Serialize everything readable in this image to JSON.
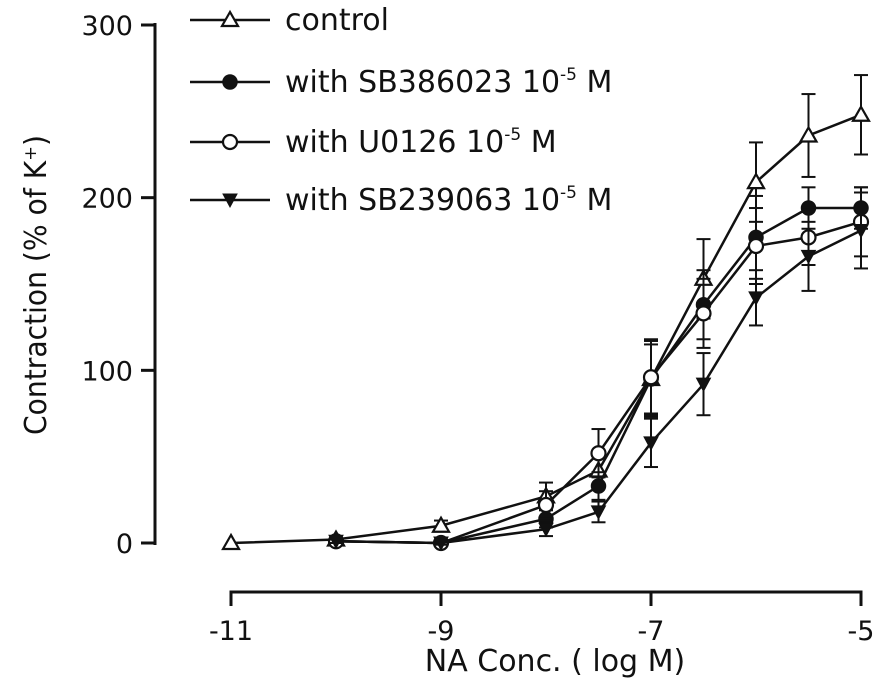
{
  "chart_data": {
    "type": "line",
    "xlabel": "NA Conc. ( log M)",
    "ylabel": "Contraction (% of K⁺)",
    "xlim": [
      -11,
      -5
    ],
    "ylim": [
      0,
      300
    ],
    "x_ticks": [
      "-11",
      "-9",
      "-7",
      "-5"
    ],
    "y_ticks": [
      "0",
      "100",
      "200",
      "300"
    ],
    "grid": false,
    "legend_position": "top-left",
    "series": [
      {
        "name": "control",
        "label_main": "control",
        "label_sup": "",
        "label_tail": "",
        "marker": "open-triangle",
        "x": [
          -11,
          -10,
          -9,
          -8,
          -7.5,
          -7,
          -6.5,
          -6,
          -5.5,
          -5
        ],
        "y": [
          0,
          2,
          10,
          27,
          42,
          95,
          153,
          209,
          236,
          248
        ],
        "err": [
          0,
          1,
          3,
          8,
          10,
          22,
          23,
          23,
          24,
          23
        ]
      },
      {
        "name": "with SB386023 10-5 M",
        "label_main": "with SB386023 10",
        "label_sup": "-5",
        "label_tail": " M",
        "marker": "filled-circle",
        "x": [
          -10,
          -9,
          -8,
          -7.5,
          -7,
          -6.5,
          -6,
          -5.5,
          -5
        ],
        "y": [
          1,
          0,
          14,
          33,
          95,
          138,
          177,
          194,
          194
        ],
        "err": [
          1,
          1,
          5,
          8,
          20,
          20,
          24,
          12,
          12
        ]
      },
      {
        "name": "with U0126 10-5 M",
        "label_main": "with U0126 10",
        "label_sup": "-5",
        "label_tail": " M",
        "marker": "open-circle",
        "x": [
          -10,
          -9,
          -8,
          -7.5,
          -7,
          -6.5,
          -6,
          -5.5,
          -5
        ],
        "y": [
          1,
          0,
          22,
          52,
          96,
          133,
          172,
          177,
          186
        ],
        "err": [
          1,
          1,
          8,
          14,
          22,
          20,
          22,
          16,
          20
        ]
      },
      {
        "name": "with SB239063 10-5 M",
        "label_main": "with SB239063 10",
        "label_sup": "-5",
        "label_tail": " M",
        "marker": "filled-triangle-down",
        "x": [
          -10,
          -9,
          -8,
          -7.5,
          -7,
          -6.5,
          -6,
          -5.5,
          -5
        ],
        "y": [
          1,
          0,
          8,
          18,
          58,
          92,
          142,
          166,
          181
        ],
        "err": [
          1,
          1,
          4,
          6,
          14,
          18,
          16,
          20,
          22
        ]
      }
    ]
  }
}
